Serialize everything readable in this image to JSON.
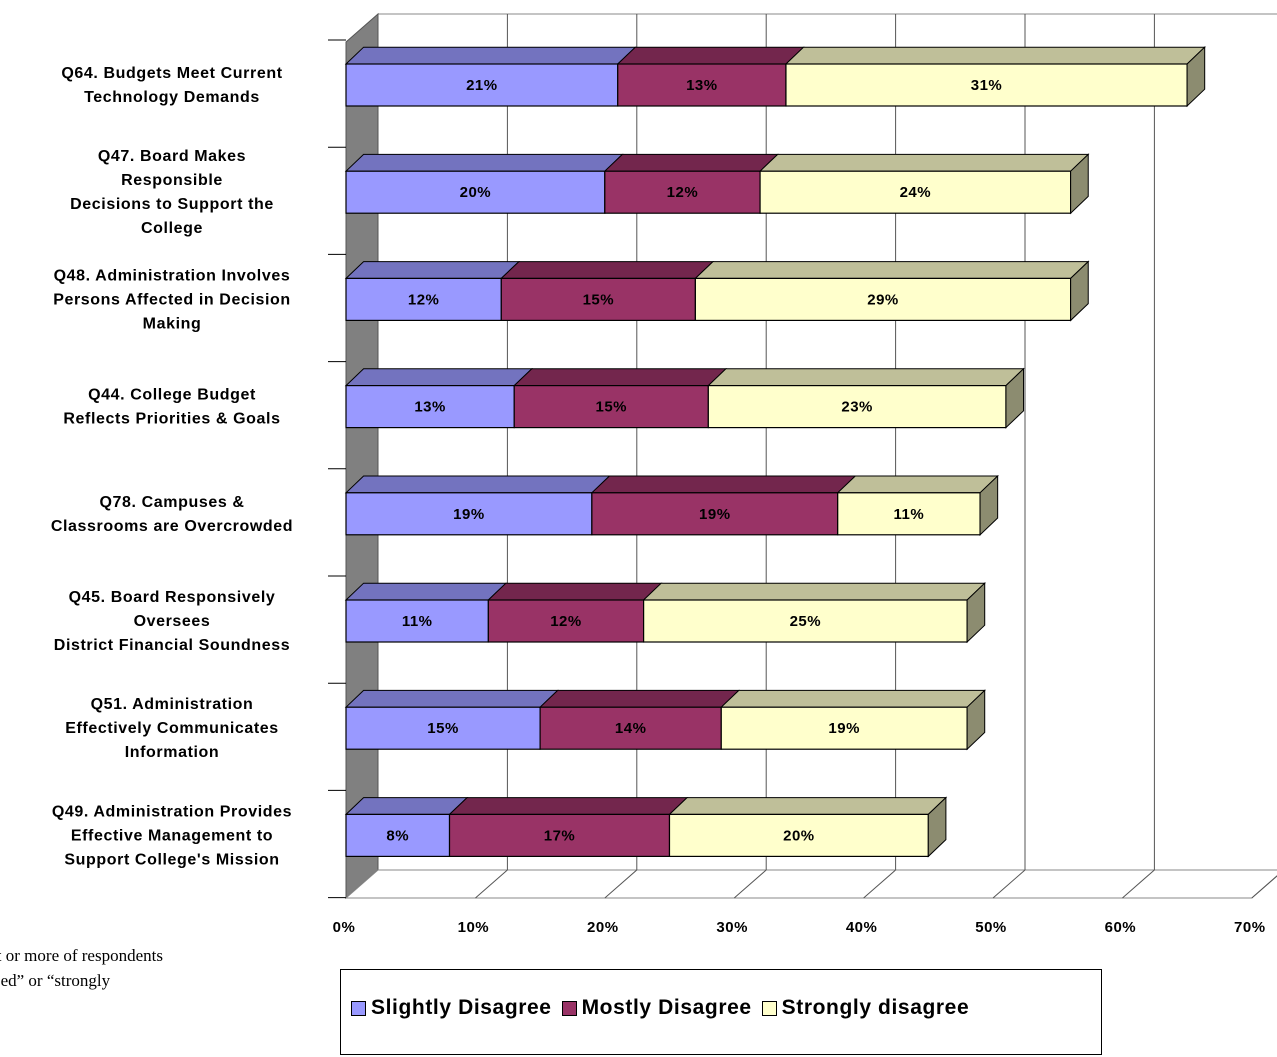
{
  "chart_data": {
    "type": "bar",
    "orientation": "horizontal",
    "stacked": true,
    "three_d": true,
    "categories": [
      [
        "Q64. Budgets Meet Current",
        "Technology Demands"
      ],
      [
        "Q47. Board Makes",
        "Responsible",
        "Decisions to Support the",
        "College"
      ],
      [
        "Q48. Administration Involves",
        "Persons Affected in Decision",
        "Making"
      ],
      [
        "Q44. College Budget",
        "Reflects Priorities & Goals"
      ],
      [
        "Q78. Campuses &",
        "Classrooms are Overcrowded"
      ],
      [
        "Q45. Board Responsively",
        "Oversees",
        "District Financial Soundness"
      ],
      [
        "Q51. Administration",
        "Effectively Communicates",
        "Information"
      ],
      [
        "Q49. Administration Provides",
        "Effective Management to",
        "Support College's Mission"
      ]
    ],
    "series": [
      {
        "name": "Slightly Disagree",
        "color": "#9999FF",
        "values": [
          21,
          20,
          12,
          13,
          19,
          11,
          15,
          8
        ]
      },
      {
        "name": "Mostly Disagree",
        "color": "#993366",
        "values": [
          13,
          12,
          15,
          15,
          19,
          12,
          14,
          17
        ]
      },
      {
        "name": "Strongly disagree",
        "color": "#FFFFCC",
        "values": [
          31,
          24,
          29,
          23,
          11,
          25,
          19,
          20
        ]
      }
    ],
    "data_labels": [
      [
        "21%",
        "13%",
        "31%"
      ],
      [
        "20%",
        "12%",
        "24%"
      ],
      [
        "12%",
        "15%",
        "29%"
      ],
      [
        "13%",
        "15%",
        "23%"
      ],
      [
        "19%",
        "19%",
        "11%"
      ],
      [
        "11%",
        "12%",
        "25%"
      ],
      [
        "15%",
        "14%",
        "19%"
      ],
      [
        "8%",
        "17%",
        "20%"
      ]
    ],
    "x_ticks": [
      "0%",
      "10%",
      "20%",
      "30%",
      "40%",
      "50%",
      "60%",
      "70%"
    ],
    "xlim": [
      0,
      70
    ],
    "grid": true,
    "legend_position": "bottom"
  },
  "footnote": "ercent or more of respondents\nisagreed” or “strongly\n”.",
  "legend": {
    "items": [
      "Slightly Disagree",
      "Mostly Disagree",
      "Strongly disagree"
    ],
    "colors": [
      "#9999FF",
      "#993366",
      "#FFFFCC"
    ]
  }
}
